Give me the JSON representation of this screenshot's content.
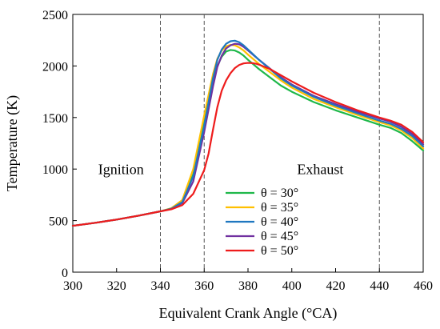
{
  "chart_data": {
    "type": "line",
    "title": "",
    "xlabel": "Equivalent Crank Angle  (°CA)",
    "ylabel": "Temperature  (K)",
    "xlim": [
      300,
      460
    ],
    "ylim": [
      0,
      2500
    ],
    "x_ticks": [
      300,
      320,
      340,
      360,
      380,
      400,
      420,
      440,
      460
    ],
    "y_ticks": [
      0,
      500,
      1000,
      1500,
      2000,
      2500
    ],
    "x_tick_labels": [
      "300",
      "320",
      "340",
      "360",
      "380",
      "400",
      "420",
      "440",
      "460"
    ],
    "y_tick_labels": [
      "0",
      "500",
      "1000",
      "1500",
      "2000",
      "2500"
    ],
    "grid": false,
    "vlines": [
      340,
      360,
      440
    ],
    "annotations": [
      {
        "text": "Ignition",
        "x": 322,
        "y": 950
      },
      {
        "text": "Exhaust",
        "x": 413,
        "y": 950
      }
    ],
    "legend_position": "center-bottom",
    "series": [
      {
        "name": "θ = 30°",
        "color": "#1fb84a",
        "x": [
          300,
          310,
          320,
          330,
          340,
          345,
          350,
          355,
          360,
          362,
          364,
          366,
          368,
          370,
          372,
          374,
          376,
          378,
          380,
          385,
          390,
          395,
          400,
          410,
          420,
          430,
          440,
          445,
          450,
          455,
          460
        ],
        "y": [
          450,
          478,
          510,
          548,
          590,
          620,
          690,
          950,
          1450,
          1650,
          1850,
          2000,
          2090,
          2140,
          2155,
          2150,
          2130,
          2100,
          2060,
          1970,
          1890,
          1810,
          1750,
          1650,
          1570,
          1500,
          1430,
          1400,
          1350,
          1270,
          1180
        ]
      },
      {
        "name": "θ = 35°",
        "color": "#ffc000",
        "x": [
          300,
          310,
          320,
          330,
          340,
          345,
          350,
          355,
          360,
          362,
          364,
          366,
          368,
          370,
          372,
          374,
          376,
          378,
          380,
          385,
          390,
          395,
          400,
          410,
          420,
          430,
          440,
          445,
          450,
          455,
          460
        ],
        "y": [
          450,
          478,
          510,
          548,
          590,
          620,
          700,
          1000,
          1520,
          1720,
          1920,
          2070,
          2150,
          2190,
          2205,
          2200,
          2180,
          2150,
          2110,
          2020,
          1940,
          1860,
          1790,
          1680,
          1600,
          1525,
          1455,
          1425,
          1375,
          1300,
          1200
        ]
      },
      {
        "name": "θ = 40°",
        "color": "#1f77c0",
        "x": [
          300,
          310,
          320,
          330,
          340,
          345,
          350,
          355,
          360,
          362,
          364,
          366,
          368,
          370,
          372,
          374,
          376,
          378,
          380,
          385,
          390,
          395,
          400,
          410,
          420,
          430,
          440,
          445,
          450,
          455,
          460
        ],
        "y": [
          450,
          478,
          510,
          548,
          590,
          615,
          680,
          930,
          1420,
          1650,
          1880,
          2060,
          2160,
          2215,
          2240,
          2245,
          2230,
          2200,
          2160,
          2060,
          1970,
          1880,
          1810,
          1700,
          1615,
          1540,
          1470,
          1440,
          1390,
          1320,
          1220
        ]
      },
      {
        "name": "θ = 45°",
        "color": "#7030a0",
        "x": [
          300,
          310,
          320,
          330,
          340,
          345,
          350,
          355,
          360,
          362,
          364,
          366,
          368,
          370,
          372,
          374,
          376,
          378,
          380,
          385,
          390,
          395,
          400,
          410,
          420,
          430,
          440,
          445,
          450,
          455,
          460
        ],
        "y": [
          450,
          478,
          510,
          548,
          590,
          615,
          670,
          880,
          1360,
          1580,
          1800,
          1990,
          2100,
          2170,
          2200,
          2215,
          2210,
          2185,
          2150,
          2060,
          1975,
          1890,
          1820,
          1710,
          1630,
          1555,
          1490,
          1460,
          1410,
          1340,
          1240
        ]
      },
      {
        "name": "θ = 50°",
        "color": "#ee1c1c",
        "x": [
          300,
          310,
          320,
          330,
          340,
          345,
          350,
          355,
          360,
          362,
          364,
          366,
          368,
          370,
          372,
          374,
          376,
          378,
          380,
          382,
          384,
          386,
          390,
          395,
          400,
          410,
          420,
          430,
          440,
          445,
          450,
          455,
          460
        ],
        "y": [
          450,
          478,
          510,
          548,
          590,
          610,
          650,
          760,
          990,
          1150,
          1380,
          1600,
          1760,
          1860,
          1930,
          1980,
          2010,
          2025,
          2030,
          2028,
          2020,
          2005,
          1970,
          1910,
          1850,
          1740,
          1650,
          1570,
          1500,
          1470,
          1430,
          1360,
          1260
        ]
      }
    ]
  }
}
